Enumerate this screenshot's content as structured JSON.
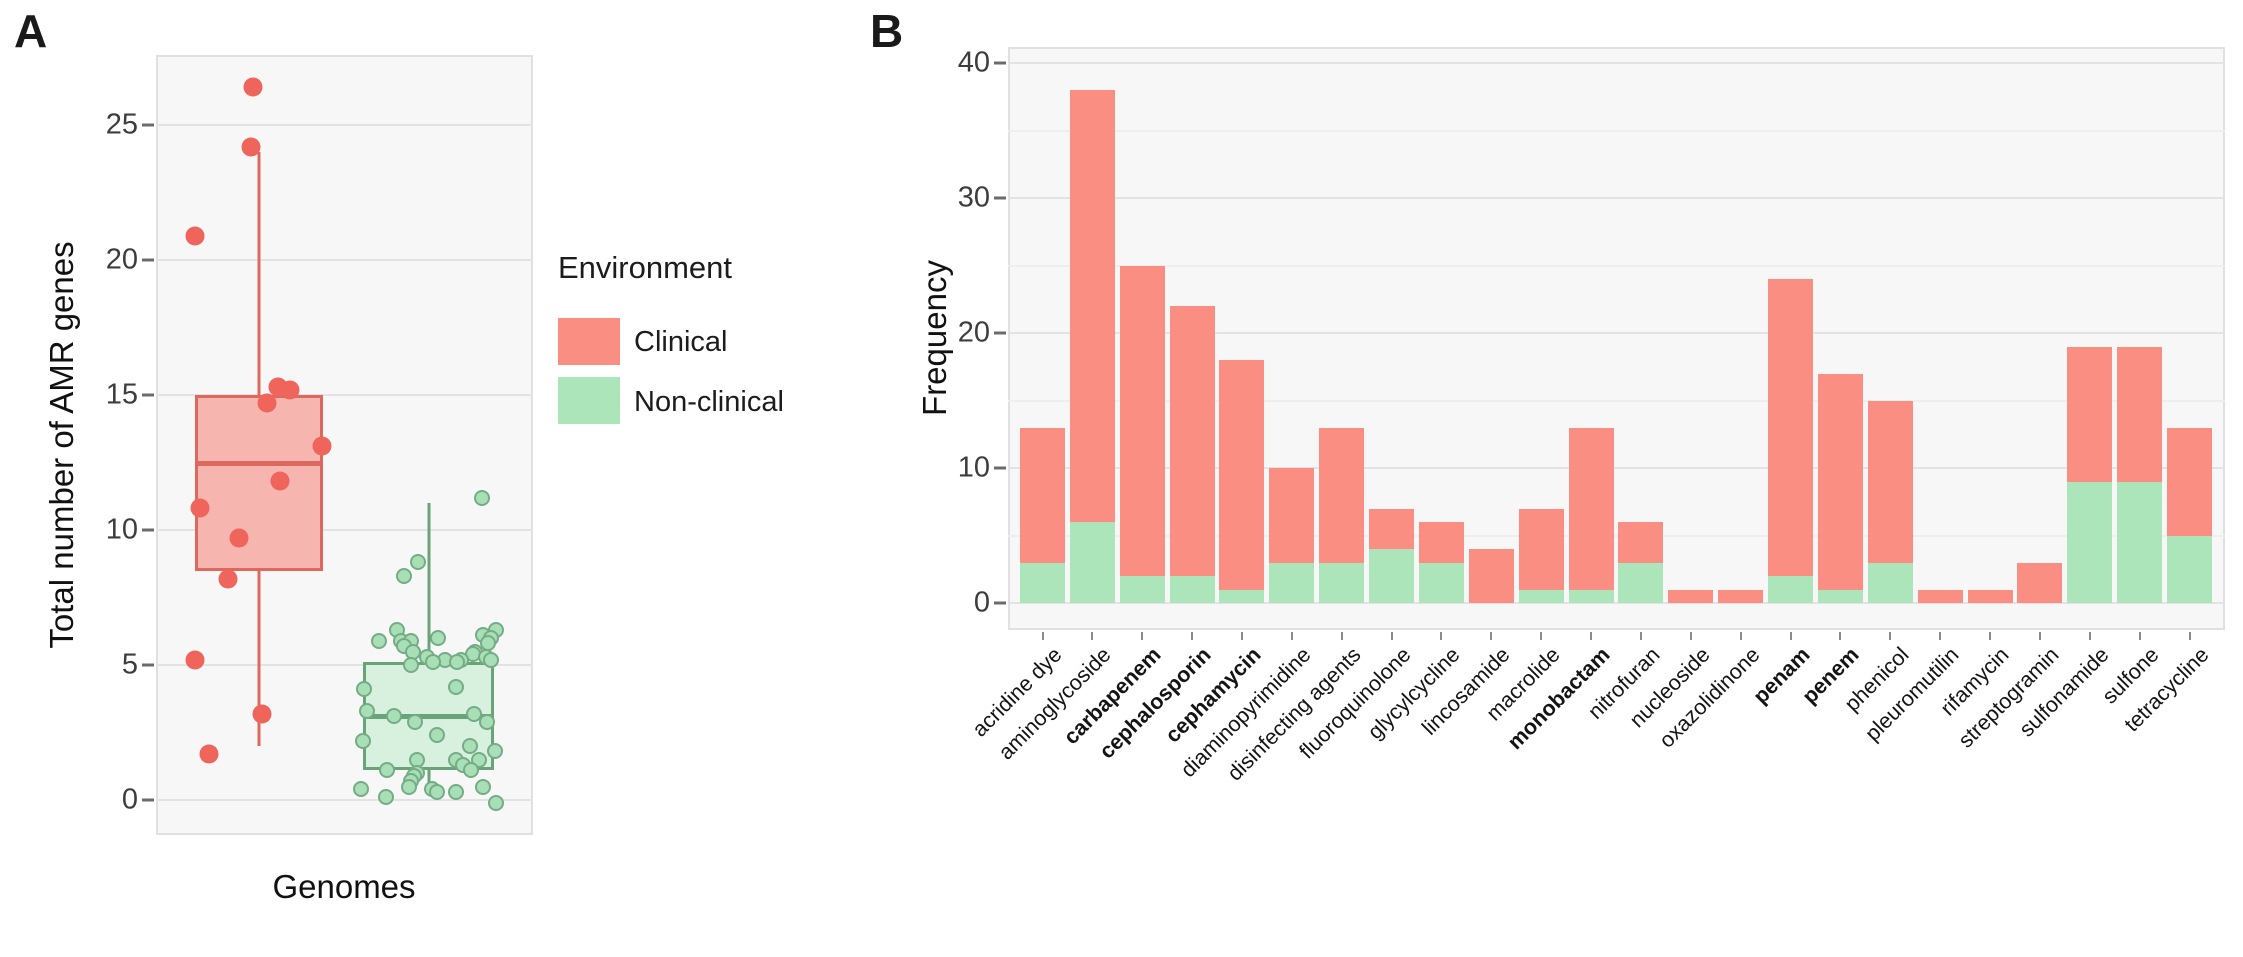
{
  "figure": {
    "panel_a": {
      "label": "A",
      "y_axis_title": "Total number of AMR genes",
      "x_axis_title": "Genomes",
      "y_ticks": [
        0,
        5,
        10,
        15,
        20,
        25
      ],
      "legend": {
        "title": "Environment",
        "items": [
          {
            "label": "Clinical",
            "color": "#FA8E82"
          },
          {
            "label": "Non-clinical",
            "color": "#ABE5B9"
          }
        ]
      }
    },
    "panel_b": {
      "label": "B",
      "y_axis_title": "Frequency",
      "y_ticks": [
        0,
        10,
        20,
        30,
        40
      ]
    }
  },
  "colors": {
    "clinical_bar": "#FA8E82",
    "non_clinical_bar": "#ABE5B9",
    "clinical_point": "#EF655C",
    "clinical_box_fill": "#F6B5AE",
    "clinical_box_border": "#DD685E",
    "non_clinical_point_fill": "#A9DFB6",
    "non_clinical_point_border": "#74AC85",
    "non_clinical_box_fill": "#D8F1DE",
    "non_clinical_box_border": "#68A478",
    "panel_bg": "#F7F7F7",
    "grid_major": "#E3E3E3",
    "grid_minor": "#EEEEEE"
  },
  "chart_data": [
    {
      "type": "boxplot",
      "panel": "A",
      "xlabel": "Genomes",
      "ylabel": "Total number of AMR genes",
      "ylim": [
        0,
        27
      ],
      "legend_title": "Environment",
      "groups": [
        {
          "name": "Clinical",
          "box": {
            "whisker_low": 2,
            "q1": 8.5,
            "median": 12.5,
            "q3": 15,
            "whisker_high": 24
          },
          "points_xv": [
            [
              253,
              26.4
            ],
            [
              251,
              24.2
            ],
            [
              195,
              20.9
            ],
            [
              278,
              15.3
            ],
            [
              290,
              15.2
            ],
            [
              267,
              14.7
            ],
            [
              322,
              13.1
            ],
            [
              280,
              11.8
            ],
            [
              200,
              10.8
            ],
            [
              239,
              9.7
            ],
            [
              228,
              8.2
            ],
            [
              195,
              5.2
            ],
            [
              262,
              3.2
            ],
            [
              209,
              1.7
            ]
          ]
        },
        {
          "name": "Non-clinical",
          "box": {
            "whisker_low": 0.5,
            "q1": 1.1,
            "median": 3.1,
            "q3": 5.1,
            "whisker_high": 11
          },
          "points_xv": [
            [
              482,
              11.2
            ],
            [
              418,
              8.8
            ],
            [
              404,
              8.3
            ],
            [
              397,
              6.3
            ],
            [
              496,
              6.3
            ],
            [
              483,
              6.1
            ],
            [
              438,
              6.0
            ],
            [
              491,
              6.0
            ],
            [
              379,
              5.9
            ],
            [
              401,
              5.9
            ],
            [
              411,
              5.9
            ],
            [
              488,
              5.8
            ],
            [
              404,
              5.7
            ],
            [
              413,
              5.5
            ],
            [
              475,
              5.5
            ],
            [
              473,
              5.4
            ],
            [
              427,
              5.3
            ],
            [
              486,
              5.3
            ],
            [
              445,
              5.2
            ],
            [
              461,
              5.2
            ],
            [
              491,
              5.2
            ],
            [
              433,
              5.1
            ],
            [
              457,
              5.1
            ],
            [
              411,
              5.0
            ],
            [
              456,
              4.2
            ],
            [
              364,
              4.1
            ],
            [
              367,
              3.3
            ],
            [
              474,
              3.2
            ],
            [
              394,
              3.1
            ],
            [
              415,
              2.9
            ],
            [
              487,
              2.9
            ],
            [
              437,
              2.4
            ],
            [
              363,
              2.2
            ],
            [
              470,
              2.0
            ],
            [
              495,
              1.8
            ],
            [
              417,
              1.5
            ],
            [
              456,
              1.5
            ],
            [
              479,
              1.5
            ],
            [
              463,
              1.3
            ],
            [
              387,
              1.1
            ],
            [
              471,
              1.1
            ],
            [
              417,
              1.0
            ],
            [
              414,
              0.9
            ],
            [
              411,
              0.7
            ],
            [
              409,
              0.5
            ],
            [
              483,
              0.5
            ],
            [
              361,
              0.4
            ],
            [
              432,
              0.4
            ],
            [
              437,
              0.3
            ],
            [
              456,
              0.3
            ],
            [
              386,
              0.1
            ],
            [
              496,
              -0.1
            ]
          ]
        }
      ]
    },
    {
      "type": "bar",
      "stacked": true,
      "panel": "B",
      "ylabel": "Frequency",
      "ylim": [
        0,
        40
      ],
      "categories": [
        {
          "label": "acridine dye",
          "bold": false
        },
        {
          "label": "aminoglycoside",
          "bold": false
        },
        {
          "label": "carbapenem",
          "bold": true
        },
        {
          "label": "cephalosporin",
          "bold": true
        },
        {
          "label": "cephamycin",
          "bold": true
        },
        {
          "label": "diaminopyrimidine",
          "bold": false
        },
        {
          "label": "disinfecting agents",
          "bold": false
        },
        {
          "label": "fluoroquinolone",
          "bold": false
        },
        {
          "label": "glycylcycline",
          "bold": false
        },
        {
          "label": "lincosamide",
          "bold": false
        },
        {
          "label": "macrolide",
          "bold": false
        },
        {
          "label": "monobactam",
          "bold": true
        },
        {
          "label": "nitrofuran",
          "bold": false
        },
        {
          "label": "nucleoside",
          "bold": false
        },
        {
          "label": "oxazolidinone",
          "bold": false
        },
        {
          "label": "penam",
          "bold": true
        },
        {
          "label": "penem",
          "bold": true
        },
        {
          "label": "phenicol",
          "bold": false
        },
        {
          "label": "pleuromutilin",
          "bold": false
        },
        {
          "label": "rifamycin",
          "bold": false
        },
        {
          "label": "streptogramin",
          "bold": false
        },
        {
          "label": "sulfonamide",
          "bold": false
        },
        {
          "label": "sulfone",
          "bold": false
        },
        {
          "label": "tetracycline",
          "bold": false
        }
      ],
      "series": [
        {
          "name": "Non-clinical",
          "values": [
            3,
            6,
            2,
            2,
            1,
            3,
            3,
            4,
            3,
            0,
            1,
            1,
            3,
            0,
            0,
            2,
            1,
            3,
            0,
            0,
            0,
            9,
            9,
            5
          ]
        },
        {
          "name": "Clinical",
          "values": [
            10,
            32,
            23,
            20,
            17,
            7,
            10,
            3,
            3,
            4,
            6,
            12,
            3,
            1,
            1,
            22,
            16,
            12,
            1,
            1,
            3,
            10,
            10,
            8
          ]
        }
      ],
      "totals": [
        13,
        38,
        25,
        22,
        18,
        10,
        13,
        7,
        6,
        4,
        7,
        13,
        6,
        1,
        1,
        24,
        17,
        15,
        1,
        1,
        3,
        19,
        19,
        13
      ]
    }
  ]
}
